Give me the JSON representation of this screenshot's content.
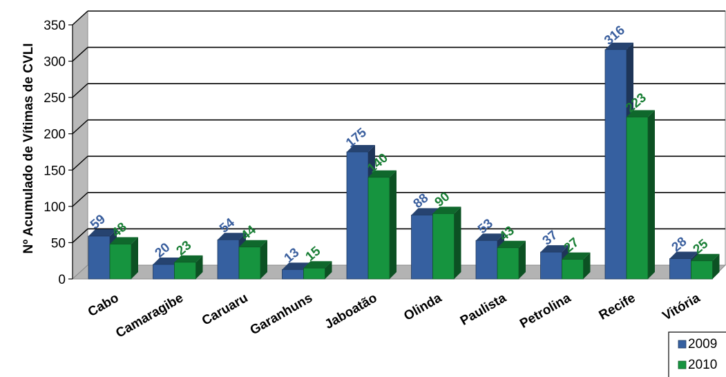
{
  "chart_data": {
    "type": "bar",
    "title": "",
    "xlabel": "",
    "ylabel": "Nº Acumulado de Vítimas de CVLI",
    "ylim": [
      0,
      350
    ],
    "yticks": [
      0,
      50,
      100,
      150,
      200,
      250,
      300,
      350
    ],
    "grid": true,
    "legend_position": "bottom-right",
    "categories": [
      "Cabo",
      "Camaragibe",
      "Caruaru",
      "Garanhuns",
      "Jaboatão",
      "Olinda",
      "Paulista",
      "Petrolina",
      "Recife",
      "Vitória"
    ],
    "series": [
      {
        "name": "2009",
        "color": "#3660A0",
        "label_color": "#3A5F9E",
        "values": [
          59,
          20,
          54,
          13,
          175,
          88,
          53,
          37,
          316,
          28
        ]
      },
      {
        "name": "2010",
        "color": "#16943F",
        "label_color": "#1A7F36",
        "values": [
          48,
          23,
          44,
          15,
          140,
          90,
          43,
          27,
          223,
          25
        ]
      }
    ]
  }
}
